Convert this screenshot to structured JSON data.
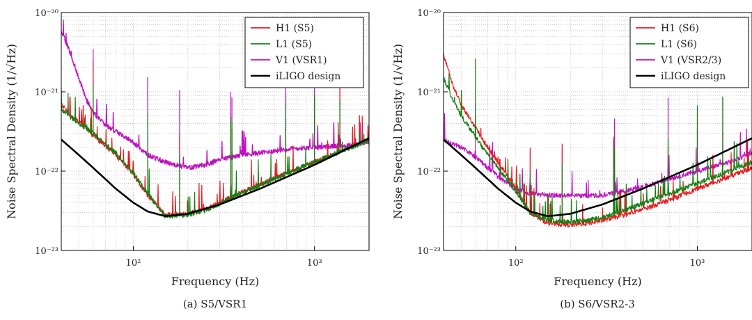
{
  "chart_data": [
    {
      "type": "line",
      "caption": "(a) S5/VSR1",
      "xlabel": "Frequency (Hz)",
      "ylabel": "Noise Spectral Density (1/√Hz)",
      "xscale": "log",
      "yscale": "log",
      "xlim": [
        40,
        2000
      ],
      "ylim": [
        1e-23,
        1e-20
      ],
      "x_ticks": [
        {
          "value": 100,
          "label": "10²"
        },
        {
          "value": 1000,
          "label": "10³"
        }
      ],
      "y_ticks": [
        {
          "value": 1e-20,
          "label": "10⁻²⁰"
        },
        {
          "value": 1e-21,
          "label": "10⁻²¹"
        },
        {
          "value": 1e-22,
          "label": "10⁻²²"
        },
        {
          "value": 1e-23,
          "label": "10⁻²³"
        }
      ],
      "grid": true,
      "legend_position": "top-right",
      "series": [
        {
          "name": "H1 (S5)",
          "color": "#e8191c",
          "width": 1.2,
          "x": [
            40,
            45,
            50,
            60,
            70,
            80,
            100,
            120,
            150,
            200,
            250,
            300,
            400,
            500,
            700,
            1000,
            1500,
            2000
          ],
          "y": [
            7e-22,
            5e-22,
            4.2e-22,
            2.8e-22,
            2.1e-22,
            1.6e-22,
            9e-23,
            5e-23,
            2.8e-23,
            2.9e-23,
            3.3e-23,
            4e-23,
            5.5e-23,
            6.7e-23,
            9.5e-23,
            1.3e-22,
            1.9e-22,
            2.5e-22
          ]
        },
        {
          "name": "L1 (S5)",
          "color": "#138013",
          "width": 1.2,
          "x": [
            40,
            45,
            50,
            60,
            70,
            80,
            100,
            120,
            150,
            200,
            250,
            300,
            400,
            500,
            700,
            1000,
            1500,
            2000
          ],
          "y": [
            6e-22,
            4.8e-22,
            4e-22,
            3e-22,
            2.2e-22,
            1.7e-22,
            9.5e-23,
            5.2e-23,
            2.7e-23,
            2.8e-23,
            3.2e-23,
            3.9e-23,
            5.4e-23,
            6.6e-23,
            9.3e-23,
            1.3e-22,
            1.9e-22,
            2.4e-22
          ]
        },
        {
          "name": "V1 (VSR1)",
          "color": "#bf12bf",
          "width": 1.4,
          "x": [
            40,
            45,
            50,
            55,
            60,
            70,
            80,
            100,
            120,
            150,
            200,
            250,
            300,
            400,
            500,
            700,
            1000,
            1500,
            2000
          ],
          "y": [
            6e-21,
            3e-21,
            1.5e-21,
            8e-22,
            5.5e-22,
            3.8e-22,
            3.2e-22,
            2.3e-22,
            1.6e-22,
            1.3e-22,
            1.1e-22,
            1.2e-22,
            1.4e-22,
            1.6e-22,
            1.7e-22,
            1.9e-22,
            2e-22,
            2.1e-22,
            2.3e-22
          ]
        },
        {
          "name": "iLIGO design",
          "color": "#000000",
          "width": 2.6,
          "x": [
            40,
            50,
            60,
            80,
            100,
            120,
            150,
            200,
            300,
            500,
            1000,
            2000
          ],
          "y": [
            2.5e-22,
            1.6e-22,
            1.1e-22,
            6e-23,
            4e-23,
            3.1e-23,
            2.7e-23,
            2.9e-23,
            3.8e-23,
            6e-23,
            1.2e-22,
            2.6e-22
          ]
        }
      ]
    },
    {
      "type": "line",
      "caption": "(b) S6/VSR2-3",
      "xlabel": "Frequency (Hz)",
      "ylabel": "Noise Spectral Density (1/√Hz)",
      "xscale": "log",
      "yscale": "log",
      "xlim": [
        40,
        2000
      ],
      "ylim": [
        1e-23,
        1e-20
      ],
      "x_ticks": [
        {
          "value": 100,
          "label": "10²"
        },
        {
          "value": 1000,
          "label": "10³"
        }
      ],
      "y_ticks": [
        {
          "value": 1e-20,
          "label": "10⁻²⁰"
        },
        {
          "value": 1e-21,
          "label": "10⁻²¹"
        },
        {
          "value": 1e-22,
          "label": "10⁻²²"
        },
        {
          "value": 1e-23,
          "label": "10⁻²³"
        }
      ],
      "grid": true,
      "legend_position": "top-right",
      "series": [
        {
          "name": "H1 (S6)",
          "color": "#e8191c",
          "width": 1.2,
          "x": [
            40,
            45,
            50,
            60,
            70,
            80,
            100,
            120,
            150,
            200,
            250,
            300,
            400,
            500,
            700,
            1000,
            1500,
            2000
          ],
          "y": [
            3e-21,
            1.2e-21,
            7e-22,
            3.5e-22,
            2e-22,
            1.3e-22,
            6e-23,
            3e-23,
            2.2e-23,
            2.1e-23,
            2.2e-23,
            2.4e-23,
            2.8e-23,
            3.3e-23,
            4.3e-23,
            6e-23,
            8.5e-23,
            1.1e-22
          ]
        },
        {
          "name": "L1 (S6)",
          "color": "#138013",
          "width": 1.2,
          "x": [
            40,
            45,
            50,
            60,
            70,
            80,
            100,
            120,
            150,
            200,
            250,
            300,
            400,
            500,
            700,
            1000,
            1500,
            2000
          ],
          "y": [
            1.5e-21,
            8e-22,
            5e-22,
            2.7e-22,
            1.6e-22,
            1.1e-22,
            5.5e-23,
            3e-23,
            2.4e-23,
            2.3e-23,
            2.4e-23,
            2.6e-23,
            3.2e-23,
            3.9e-23,
            5.2e-23,
            7e-23,
            1e-22,
            1.3e-22
          ]
        },
        {
          "name": "V1 (VSR2/3)",
          "color": "#bf12bf",
          "width": 1.2,
          "x": [
            40,
            45,
            50,
            60,
            70,
            80,
            100,
            120,
            150,
            200,
            250,
            300,
            400,
            500,
            700,
            1000,
            1500,
            2000
          ],
          "y": [
            2.5e-22,
            2.2e-22,
            2e-22,
            1.5e-22,
            1.1e-22,
            8.5e-23,
            6e-23,
            5.2e-23,
            5e-23,
            4.9e-23,
            4.9e-23,
            5e-23,
            5.6e-23,
            6.3e-23,
            8e-23,
            1e-22,
            1.3e-22,
            1.7e-22
          ]
        },
        {
          "name": "iLIGO design",
          "color": "#000000",
          "width": 2.6,
          "x": [
            40,
            50,
            60,
            80,
            100,
            120,
            150,
            200,
            300,
            500,
            1000,
            2000
          ],
          "y": [
            2.5e-22,
            1.6e-22,
            1.1e-22,
            6e-23,
            4e-23,
            3.1e-23,
            2.7e-23,
            2.9e-23,
            3.8e-23,
            6e-23,
            1.2e-22,
            2.6e-22
          ]
        }
      ]
    }
  ]
}
